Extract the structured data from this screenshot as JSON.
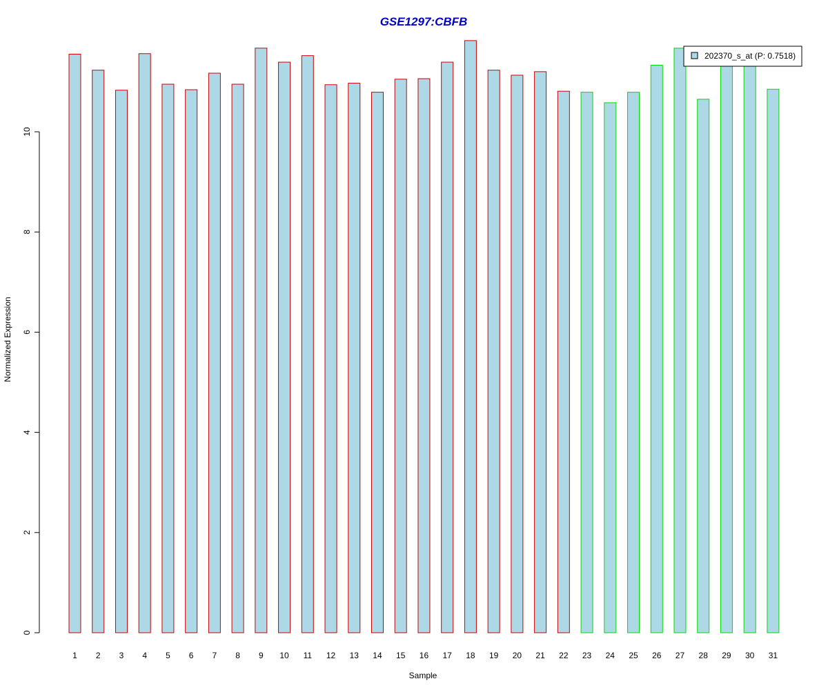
{
  "chart_data": {
    "type": "bar",
    "title": "GSE1297:CBFB",
    "xlabel": "Sample",
    "ylabel": "Normalized Expression",
    "ylim": [
      0,
      12
    ],
    "yticks": [
      0,
      2,
      4,
      6,
      8,
      10
    ],
    "ytick_labels": [
      "0",
      "2",
      "4",
      "6",
      "8",
      "10"
    ],
    "categories": [
      "1",
      "2",
      "3",
      "4",
      "5",
      "6",
      "7",
      "8",
      "9",
      "10",
      "11",
      "12",
      "13",
      "14",
      "15",
      "16",
      "17",
      "18",
      "19",
      "20",
      "21",
      "22",
      "23",
      "24",
      "25",
      "26",
      "27",
      "28",
      "29",
      "30",
      "31"
    ],
    "series": [
      {
        "name": "202370_s_at (P: 0.7518)",
        "values": [
          11.55,
          11.23,
          10.83,
          11.56,
          10.95,
          10.84,
          11.17,
          10.95,
          11.67,
          11.39,
          11.52,
          10.94,
          10.97,
          10.79,
          11.05,
          11.06,
          11.39,
          11.82,
          11.23,
          11.13,
          11.2,
          10.81,
          10.79,
          10.58,
          10.79,
          11.33,
          11.67,
          10.65,
          11.4,
          11.33,
          10.85
        ]
      }
    ],
    "group_borders": [
      "#cc0000",
      "#cc0000",
      "#cc0000",
      "#cc0000",
      "#cc0000",
      "#cc0000",
      "#cc0000",
      "#cc0000",
      "#cc0000",
      "#cc0000",
      "#cc0000",
      "#cc0000",
      "#cc0000",
      "#cc0000",
      "#cc0000",
      "#cc0000",
      "#cc0000",
      "#cc0000",
      "#cc0000",
      "#cc0000",
      "#cc0000",
      "#cc0000",
      "#00dd00",
      "#00dd00",
      "#00dd00",
      "#00dd00",
      "#00dd00",
      "#00dd00",
      "#00dd00",
      "#00dd00",
      "#00dd00"
    ],
    "bar_fill": "#add8e6",
    "title_color": "#0000cc",
    "legend": {
      "label": "202370_s_at (P: 0.7518)",
      "position": "top-right"
    },
    "grid": false
  }
}
